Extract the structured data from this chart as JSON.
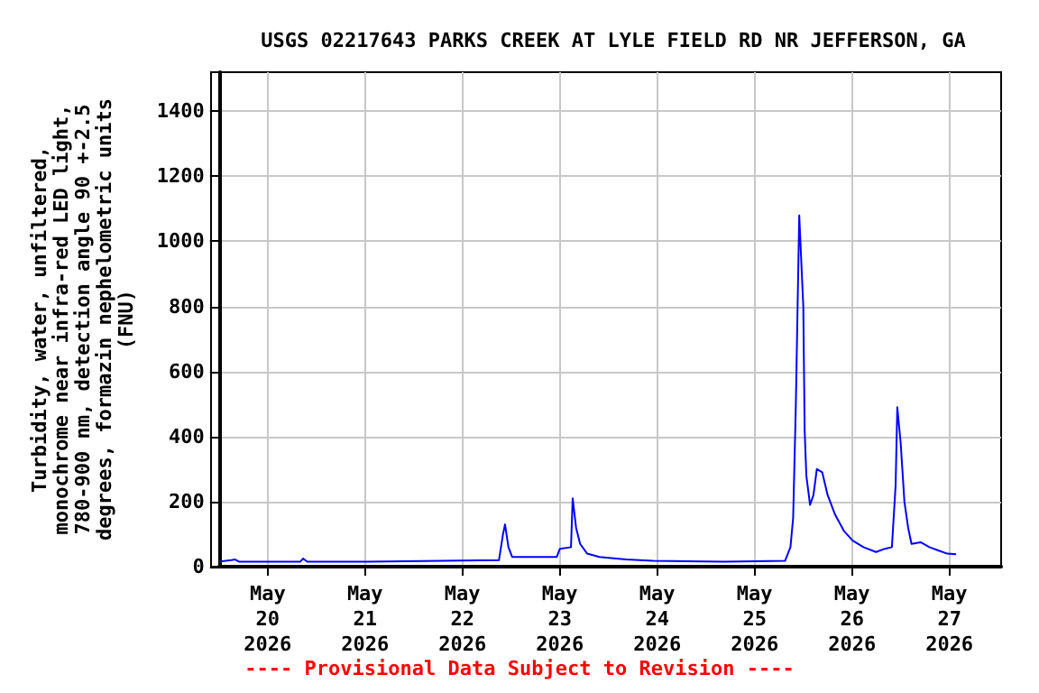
{
  "chart_data": {
    "type": "line",
    "title": "USGS 02217643 PARKS CREEK AT LYLE FIELD RD NR JEFFERSON, GA",
    "ylabel": "Turbidity, water, unfiltered,\nmonochrome near infra-red LED light,\n780-900 nm, detection angle 90 +-2.5\ndegrees, formazin nephelometric units\n(FNU)",
    "annotations": [
      "---- Provisional Data Subject to Revision ----"
    ],
    "x": [
      "2026-05-19T12:00",
      "2026-05-19T15:00",
      "2026-05-19T16:00",
      "2026-05-19T17:00",
      "2026-05-20T08:00",
      "2026-05-20T08:45",
      "2026-05-20T09:45",
      "2026-05-21T00:30",
      "2026-05-22T09:00",
      "2026-05-22T10:00",
      "2026-05-22T10:30",
      "2026-05-22T11:20",
      "2026-05-22T12:15",
      "2026-05-22T23:15",
      "2026-05-23T00:00",
      "2026-05-23T02:45",
      "2026-05-23T03:10",
      "2026-05-23T04:00",
      "2026-05-23T05:00",
      "2026-05-23T06:45",
      "2026-05-23T09:45",
      "2026-05-23T16:20",
      "2026-05-23T23:00",
      "2026-05-24T16:30",
      "2026-05-25T07:30",
      "2026-05-25T08:50",
      "2026-05-25T09:30",
      "2026-05-25T10:10",
      "2026-05-25T11:00",
      "2026-05-25T12:00",
      "2026-05-25T12:20",
      "2026-05-25T12:45",
      "2026-05-25T13:40",
      "2026-05-25T14:30",
      "2026-05-25T15:20",
      "2026-05-25T16:40",
      "2026-05-25T18:00",
      "2026-05-25T19:50",
      "2026-05-25T22:00",
      "2026-05-26T00:10",
      "2026-05-26T02:50",
      "2026-05-26T05:55",
      "2026-05-26T08:05",
      "2026-05-26T09:50",
      "2026-05-26T10:45",
      "2026-05-26T11:10",
      "2026-05-26T12:00",
      "2026-05-26T12:55",
      "2026-05-26T13:50",
      "2026-05-26T14:40",
      "2026-05-26T16:55",
      "2026-05-26T19:05",
      "2026-05-26T21:15",
      "2026-05-26T23:30",
      "2026-05-27T01:40"
    ],
    "series": [
      {
        "color": "#0000ff",
        "values": [
          15,
          20,
          22,
          15,
          15,
          25,
          15,
          15,
          20,
          100,
          130,
          60,
          30,
          30,
          55,
          60,
          210,
          120,
          70,
          40,
          30,
          22,
          18,
          15,
          18,
          60,
          150,
          500,
          1080,
          800,
          420,
          280,
          190,
          220,
          300,
          290,
          220,
          160,
          110,
          80,
          60,
          45,
          55,
          60,
          250,
          490,
          380,
          200,
          120,
          70,
          75,
          60,
          50,
          40,
          38
        ]
      }
    ],
    "xlim": [
      "2026-05-19T12:00",
      "2026-05-27T12:45"
    ],
    "xticks": [
      {
        "value": "2026-05-20",
        "label": "May\n20\n2026"
      },
      {
        "value": "2026-05-21",
        "label": "May\n21\n2026"
      },
      {
        "value": "2026-05-22",
        "label": "May\n22\n2026"
      },
      {
        "value": "2026-05-23",
        "label": "May\n23\n2026"
      },
      {
        "value": "2026-05-24",
        "label": "May\n24\n2026"
      },
      {
        "value": "2026-05-25",
        "label": "May\n25\n2026"
      },
      {
        "value": "2026-05-26",
        "label": "May\n26\n2026"
      },
      {
        "value": "2026-05-27",
        "label": "May\n27\n2026"
      }
    ],
    "ylim": [
      0,
      1520
    ],
    "yticks": [
      0,
      200,
      400,
      600,
      800,
      1000,
      1200,
      1400
    ],
    "grid": true,
    "marker": "none",
    "line_style": "solid"
  }
}
